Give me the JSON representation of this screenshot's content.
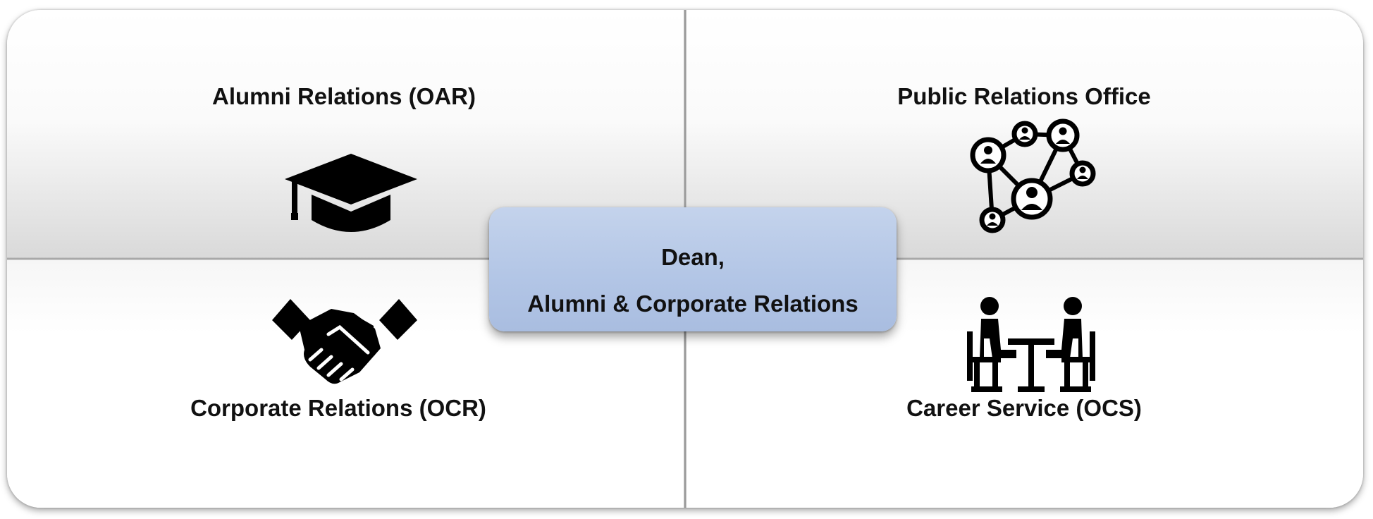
{
  "center": {
    "line1": "Dean,",
    "line2": "Alumni & Corporate Relations",
    "fill_color": "#b3c6e6"
  },
  "quadrants": {
    "top_left": {
      "label": "Alumni Relations (OAR)",
      "icon": "graduation-cap-icon"
    },
    "top_right": {
      "label": "Public Relations Office",
      "icon": "people-network-icon"
    },
    "bottom_left": {
      "label": "Corporate Relations (OCR)",
      "icon": "handshake-icon"
    },
    "bottom_right": {
      "label": "Career Service (OCS)",
      "icon": "meeting-table-icon"
    }
  }
}
